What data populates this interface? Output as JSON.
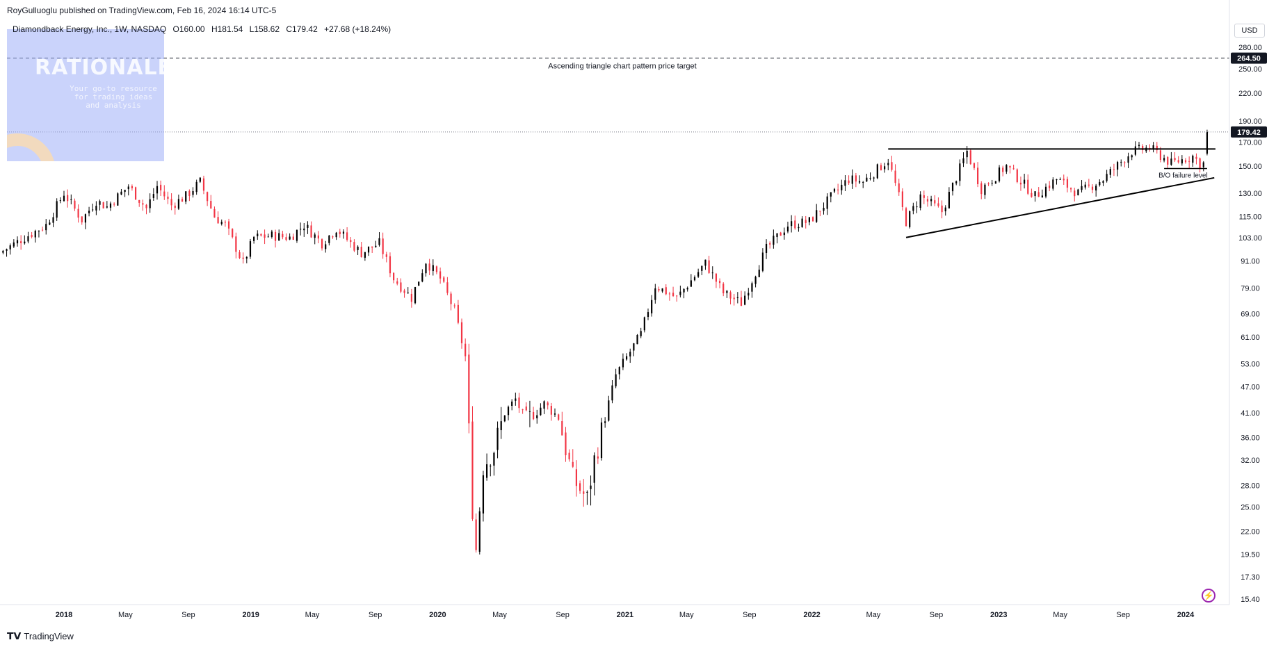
{
  "header": {
    "published": "RoyGulluoglu published on TradingView.com, Feb 16, 2024 16:14 UTC-5",
    "symbol": "Diamondback Energy, Inc., 1W, NASDAQ",
    "open": "O160.00",
    "high": "H181.54",
    "low": "L158.62",
    "close": "C179.42",
    "change": "+27.68 (+18.24%)"
  },
  "logo": {
    "title": "RATIONALE",
    "subtitle": "Your go-to resource for trading ideas and analysis"
  },
  "price_scale": {
    "currency": "USD",
    "last_price": "179.42",
    "target_price": "264.50"
  },
  "annotations": {
    "target_label": "Ascending triangle chart pattern price target",
    "bo_label": "B/O failure level"
  },
  "footer": {
    "brand": "TradingView"
  },
  "colors": {
    "up": "#000000",
    "down": "#f23645",
    "price_badge": "#131722",
    "background": "#ffffff"
  },
  "chart_data": {
    "type": "candlestick",
    "scale": "log",
    "ylim": [
      15.0,
      300.0
    ],
    "yticks": [
      280.0,
      250.0,
      220.0,
      190.0,
      170.0,
      150.0,
      130.0,
      115.0,
      103.0,
      91.0,
      79.0,
      69.0,
      61.0,
      53.0,
      47.0,
      41.0,
      36.0,
      32.0,
      28.0,
      25.0,
      22.0,
      19.5,
      17.3,
      15.4
    ],
    "xticks": [
      {
        "label": "2018",
        "date": "2018-01-01",
        "bold": true
      },
      {
        "label": "May",
        "date": "2018-05-01",
        "bold": false
      },
      {
        "label": "Sep",
        "date": "2018-09-01",
        "bold": false
      },
      {
        "label": "2019",
        "date": "2019-01-01",
        "bold": true
      },
      {
        "label": "May",
        "date": "2019-05-01",
        "bold": false
      },
      {
        "label": "Sep",
        "date": "2019-09-01",
        "bold": false
      },
      {
        "label": "2020",
        "date": "2020-01-01",
        "bold": true
      },
      {
        "label": "May",
        "date": "2020-05-01",
        "bold": false
      },
      {
        "label": "Sep",
        "date": "2020-09-01",
        "bold": false
      },
      {
        "label": "2021",
        "date": "2021-01-01",
        "bold": true
      },
      {
        "label": "May",
        "date": "2021-05-01",
        "bold": false
      },
      {
        "label": "Sep",
        "date": "2021-09-01",
        "bold": false
      },
      {
        "label": "2022",
        "date": "2022-01-01",
        "bold": true
      },
      {
        "label": "May",
        "date": "2022-05-01",
        "bold": false
      },
      {
        "label": "Sep",
        "date": "2022-09-01",
        "bold": false
      },
      {
        "label": "2023",
        "date": "2023-01-01",
        "bold": true
      },
      {
        "label": "May",
        "date": "2023-05-01",
        "bold": false
      },
      {
        "label": "Sep",
        "date": "2023-09-01",
        "bold": false
      },
      {
        "label": "2024",
        "date": "2024-01-01",
        "bold": true
      }
    ],
    "price_path": [
      [
        "2017-09-04",
        95
      ],
      [
        "2017-10-23",
        103
      ],
      [
        "2017-12-04",
        110
      ],
      [
        "2018-01-08",
        130
      ],
      [
        "2018-02-12",
        113
      ],
      [
        "2018-03-12",
        125
      ],
      [
        "2018-04-02",
        121
      ],
      [
        "2018-05-14",
        135
      ],
      [
        "2018-06-18",
        120
      ],
      [
        "2018-07-09",
        135
      ],
      [
        "2018-08-06",
        122
      ],
      [
        "2018-09-03",
        128
      ],
      [
        "2018-10-01",
        138
      ],
      [
        "2018-10-29",
        115
      ],
      [
        "2018-11-19",
        110
      ],
      [
        "2018-12-24",
        90
      ],
      [
        "2019-01-14",
        103
      ],
      [
        "2019-02-18",
        104
      ],
      [
        "2019-03-25",
        103
      ],
      [
        "2019-04-22",
        110
      ],
      [
        "2019-05-27",
        100
      ],
      [
        "2019-06-24",
        108
      ],
      [
        "2019-07-22",
        100
      ],
      [
        "2019-08-12",
        95
      ],
      [
        "2019-09-16",
        100
      ],
      [
        "2019-10-14",
        83
      ],
      [
        "2019-11-18",
        75
      ],
      [
        "2019-12-16",
        91
      ],
      [
        "2020-01-13",
        83
      ],
      [
        "2020-02-10",
        70
      ],
      [
        "2020-03-02",
        55
      ],
      [
        "2020-03-16",
        25
      ],
      [
        "2020-03-23",
        20
      ],
      [
        "2020-04-06",
        31
      ],
      [
        "2020-04-27",
        34
      ],
      [
        "2020-05-18",
        41
      ],
      [
        "2020-06-08",
        44
      ],
      [
        "2020-06-29",
        39
      ],
      [
        "2020-08-03",
        43
      ],
      [
        "2020-08-31",
        40
      ],
      [
        "2020-09-28",
        29
      ],
      [
        "2020-10-26",
        26
      ],
      [
        "2020-11-09",
        32
      ],
      [
        "2020-12-21",
        50
      ],
      [
        "2021-02-08",
        62
      ],
      [
        "2021-03-08",
        80
      ],
      [
        "2021-04-19",
        75
      ],
      [
        "2021-06-14",
        90
      ],
      [
        "2021-07-19",
        77
      ],
      [
        "2021-08-23",
        73
      ],
      [
        "2021-10-11",
        97
      ],
      [
        "2021-11-22",
        110
      ],
      [
        "2022-01-03",
        112
      ],
      [
        "2022-02-21",
        130
      ],
      [
        "2022-03-21",
        140
      ],
      [
        "2022-04-18",
        138
      ],
      [
        "2022-06-06",
        155
      ],
      [
        "2022-07-11",
        112
      ],
      [
        "2022-08-08",
        128
      ],
      [
        "2022-09-19",
        118
      ],
      [
        "2022-11-07",
        162
      ],
      [
        "2022-12-05",
        133
      ],
      [
        "2023-01-23",
        150
      ],
      [
        "2023-03-20",
        128
      ],
      [
        "2023-05-01",
        140
      ],
      [
        "2023-06-12",
        130
      ],
      [
        "2023-07-31",
        140
      ],
      [
        "2023-09-25",
        162
      ],
      [
        "2023-10-30",
        165
      ],
      [
        "2023-12-11",
        152
      ],
      [
        "2024-01-22",
        158
      ],
      [
        "2024-02-05",
        152
      ]
    ],
    "last_candle": {
      "date": "2024-02-12",
      "open": 160.0,
      "high": 181.54,
      "low": 158.62,
      "close": 179.42
    },
    "price_target": 264.5,
    "last_price": 179.42,
    "resistance": {
      "from": "2022-05-30",
      "to": "2024-02-12",
      "price": 164
    },
    "support_trend": {
      "from": [
        "2022-07-04",
        103
      ],
      "to": [
        "2024-02-26",
        141
      ]
    },
    "bo_failure_level": {
      "from": "2023-11-20",
      "to": "2024-02-12",
      "price": 148
    }
  }
}
